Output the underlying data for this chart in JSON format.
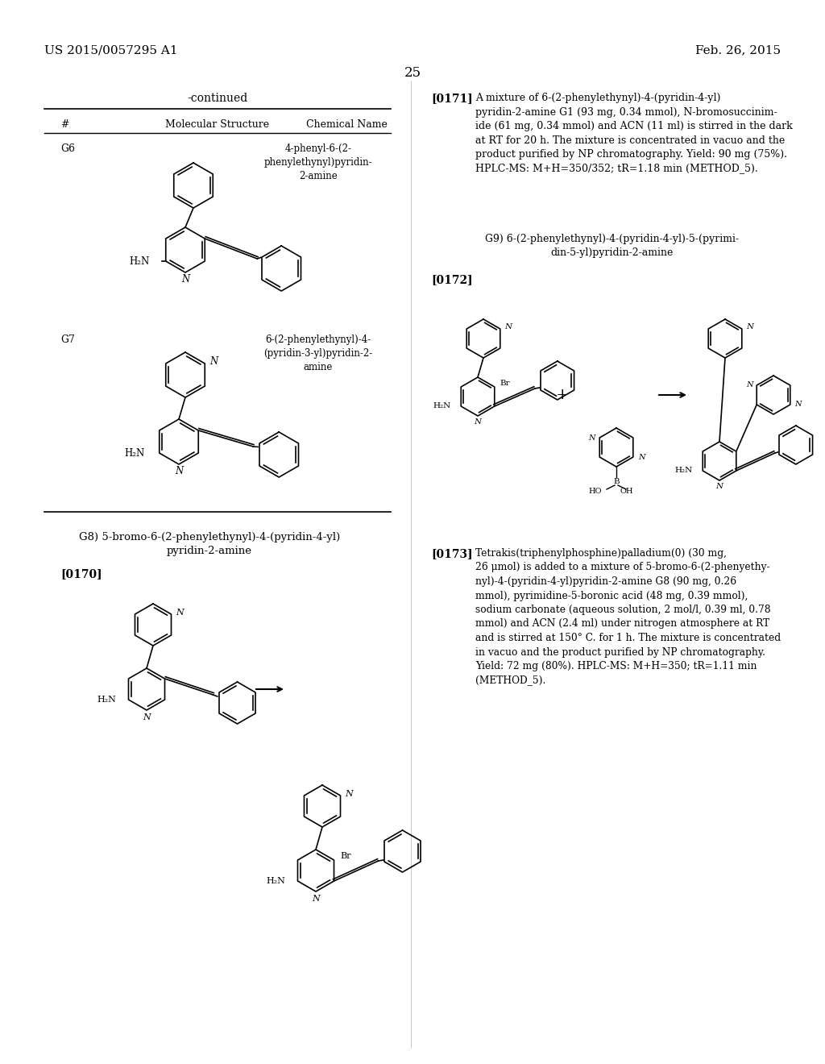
{
  "background_color": "#ffffff",
  "header_left": "US 2015/0057295 A1",
  "header_right": "Feb. 26, 2015",
  "page_number": "25",
  "table_title": "-continued",
  "table_headers": [
    "#",
    "Molecular Structure",
    "Chemical Name"
  ],
  "compounds": [
    {
      "id": "G6",
      "name": "4-phenyl-6-(2-\nphenylethynyl)pyridin-\n2-amine"
    },
    {
      "id": "G7",
      "name": "6-(2-phenylethynyl)-4-\n(pyridin-3-yl)pyridin-2-\namine"
    }
  ],
  "section_g8_title": "G8) 5-bromo-6-(2-phenylethynyl)-4-(pyridin-4-yl)\npyridin-2-amine",
  "paragraph_0170": "[0170]",
  "paragraph_0171_label": "[0171]",
  "paragraph_0171_text": "A mixture of 6-(2-phenylethynyl)-4-(pyridin-4-yl)\npyridin-2-amine G1 (93 mg, 0.34 mmol), N-bromosuccinim-\nide (61 mg, 0.34 mmol) and ACN (11 ml) is stirred in the dark\nat RT for 20 h. The mixture is concentrated in vacuo and the\nproduct purified by NP chromatography. Yield: 90 mg (75%).\nHPLC-MS: M+H=350/352; tR=1.18 min (METHOD_5).",
  "section_g9_title": "G9) 6-(2-phenylethynyl)-4-(pyridin-4-yl)-5-(pyrimi-\ndin-5-yl)pyridin-2-amine",
  "paragraph_0172_label": "[0172]",
  "paragraph_0173_label": "[0173]",
  "paragraph_0173_text": "Tetrakis(triphenylphosphine)palladium(0) (30 mg,\n26 μmol) is added to a mixture of 5-bromo-6-(2-phenyethy-\nnyl)-4-(pyridin-4-yl)pyridin-2-amine G8 (90 mg, 0.26\nmmol), pyrimidine-5-boronic acid (48 mg, 0.39 mmol),\nsodium carbonate (aqueous solution, 2 mol/l, 0.39 ml, 0.78\nmmol) and ACN (2.4 ml) under nitrogen atmosphere at RT\nand is stirred at 150° C. for 1 h. The mixture is concentrated\nin vacuo and the product purified by NP chromatography.\nYield: 72 mg (80%). HPLC-MS: M+H=350; tR=1.11 min\n(METHOD_5)."
}
